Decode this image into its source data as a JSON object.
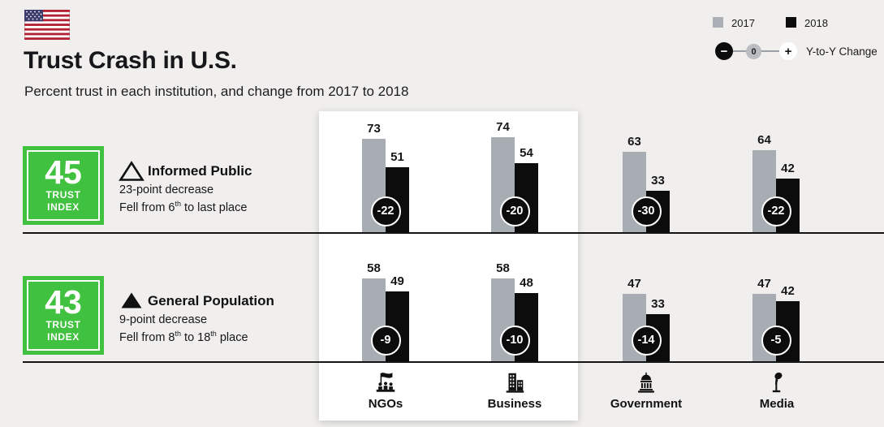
{
  "header": {
    "title": "Trust Crash in U.S.",
    "subtitle": "Percent trust in each institution, and change from 2017 to 2018"
  },
  "legend": {
    "items": [
      {
        "label": "2017",
        "color": "#abb0b6"
      },
      {
        "label": "2018",
        "color": "#0c0c0c"
      }
    ],
    "slider": {
      "minus": "−",
      "zero": "0",
      "plus": "+"
    },
    "change_label": "Y-to-Y Change"
  },
  "groups_info": [
    {
      "trust_index": "45",
      "trust_word_1": "TRUST",
      "trust_word_2": "INDEX",
      "name": "Informed Public",
      "change_summary": "23-point decrease",
      "detail_parts": [
        {
          "text": "Fell from 6"
        },
        {
          "sup": "th"
        },
        {
          "text": " to last place"
        }
      ]
    },
    {
      "trust_index": "43",
      "trust_word_1": "TRUST",
      "trust_word_2": "INDEX",
      "name": "General Population",
      "change_summary": "9-point decrease",
      "detail_parts": [
        {
          "text": "Fell from 8"
        },
        {
          "sup": "th"
        },
        {
          "text": " to 18"
        },
        {
          "sup": "th"
        },
        {
          "text": " place"
        }
      ]
    }
  ],
  "colors": {
    "trust_box_green": "#41c140",
    "bar_2017": "#a8adb3",
    "bar_2018": "#0c0c0c",
    "background": "#f0efed"
  },
  "chart_data": {
    "type": "bar",
    "title": "Trust Crash in U.S.",
    "subtitle": "Percent trust in each institution, and change from 2017 to 2018",
    "categories": [
      "NGOs",
      "Business",
      "Government",
      "Media"
    ],
    "groups": [
      {
        "label": "Informed Public",
        "trust_index": 45,
        "series": [
          {
            "name": "2017",
            "values": [
              73,
              74,
              63,
              64
            ]
          },
          {
            "name": "2018",
            "values": [
              51,
              54,
              33,
              42
            ]
          }
        ],
        "change": [
          -22,
          -20,
          -30,
          -22
        ]
      },
      {
        "label": "General Population",
        "trust_index": 43,
        "series": [
          {
            "name": "2017",
            "values": [
              58,
              58,
              47,
              47
            ]
          },
          {
            "name": "2018",
            "values": [
              49,
              48,
              33,
              42
            ]
          }
        ],
        "change": [
          -9,
          -10,
          -14,
          -5
        ]
      }
    ],
    "ylim": [
      0,
      80
    ],
    "grid": false,
    "legend_position": "top-right",
    "highlighted_categories": [
      "NGOs",
      "Business"
    ]
  }
}
